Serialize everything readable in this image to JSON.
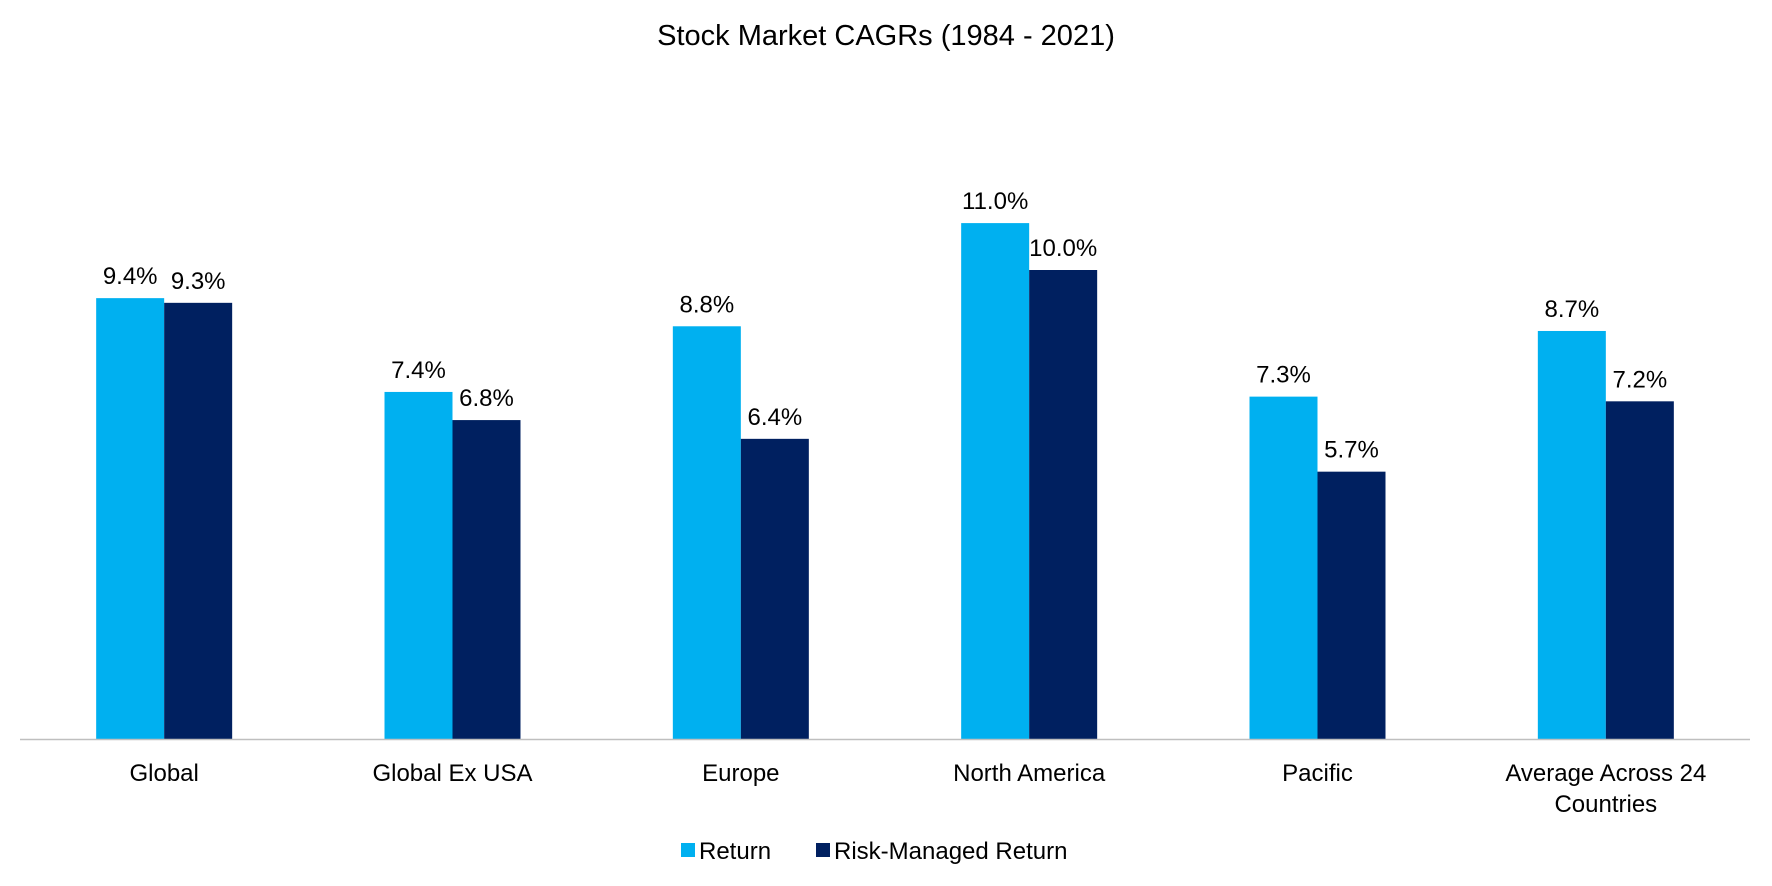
{
  "chart_data": {
    "type": "bar",
    "title": "Stock Market CAGRs (1984 - 2021)",
    "xlabel": "",
    "ylabel": "",
    "ylim": [
      0,
      12
    ],
    "grid": false,
    "legend_position": "bottom",
    "value_format": "percent-1dp",
    "categories": [
      [
        "Global"
      ],
      [
        "Global Ex USA"
      ],
      [
        "Europe"
      ],
      [
        "North America"
      ],
      [
        "Pacific"
      ],
      [
        "Average Across 24",
        "Countries"
      ]
    ],
    "series": [
      {
        "name": "Return",
        "color": "#00B0F0",
        "values": [
          9.4,
          7.4,
          8.8,
          11.0,
          7.3,
          8.7
        ],
        "labels": [
          "9.4%",
          "7.4%",
          "8.8%",
          "11.0%",
          "7.3%",
          "8.7%"
        ]
      },
      {
        "name": "Risk-Managed Return",
        "color": "#002060",
        "values": [
          9.3,
          6.8,
          6.4,
          10.0,
          5.7,
          7.2
        ],
        "labels": [
          "9.3%",
          "6.8%",
          "6.4%",
          "10.0%",
          "5.7%",
          "7.2%"
        ]
      }
    ],
    "axis_color": "#BFBFBF"
  }
}
